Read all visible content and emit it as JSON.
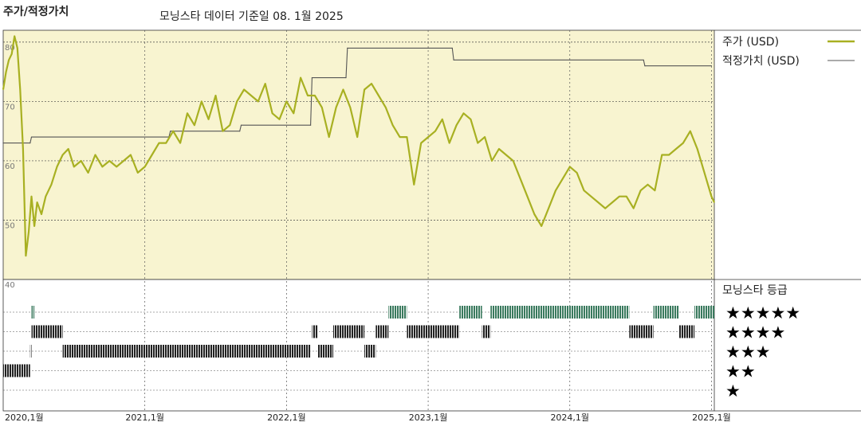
{
  "chart_data": {
    "type": "line",
    "title": "주가/적정가치",
    "subtitle": "모닝스타 데이터 기준일 08. 1월 2025",
    "xlabel": "",
    "ylabel": "",
    "ylim": [
      40,
      82
    ],
    "y_ticks": [
      "80",
      "70",
      "60",
      "50",
      "40"
    ],
    "x_ticks": [
      "2020,1월",
      "2021,1월",
      "2022,1월",
      "2023,1월",
      "2024,1월",
      "2025,1월"
    ],
    "grid": true,
    "legend_position": "top-right",
    "colors": {
      "price": "#a8b022",
      "fair_value": "#555555",
      "plot_bg": "#f8f4d0",
      "rating_bar_top": "#3a7a5e",
      "rating_bar": "#222222"
    },
    "series": [
      {
        "name": "주가 (USD)",
        "key": "price",
        "x": [
          2020.0,
          2020.02,
          2020.04,
          2020.06,
          2020.08,
          2020.1,
          2020.12,
          2020.14,
          2020.16,
          2020.18,
          2020.2,
          2020.22,
          2020.24,
          2020.27,
          2020.3,
          2020.34,
          2020.38,
          2020.42,
          2020.46,
          2020.5,
          2020.55,
          2020.6,
          2020.65,
          2020.7,
          2020.75,
          2020.8,
          2020.85,
          2020.9,
          2020.95,
          2021.0,
          2021.05,
          2021.1,
          2021.15,
          2021.2,
          2021.25,
          2021.3,
          2021.35,
          2021.4,
          2021.45,
          2021.5,
          2021.55,
          2021.6,
          2021.65,
          2021.7,
          2021.75,
          2021.8,
          2021.85,
          2021.9,
          2021.95,
          2022.0,
          2022.05,
          2022.1,
          2022.15,
          2022.2,
          2022.25,
          2022.3,
          2022.35,
          2022.4,
          2022.45,
          2022.5,
          2022.55,
          2022.6,
          2022.65,
          2022.7,
          2022.75,
          2022.8,
          2022.85,
          2022.9,
          2022.95,
          2023.0,
          2023.05,
          2023.1,
          2023.15,
          2023.2,
          2023.25,
          2023.3,
          2023.35,
          2023.4,
          2023.45,
          2023.5,
          2023.55,
          2023.6,
          2023.65,
          2023.7,
          2023.75,
          2023.8,
          2023.85,
          2023.9,
          2023.95,
          2024.0,
          2024.05,
          2024.1,
          2024.15,
          2024.2,
          2024.25,
          2024.3,
          2024.35,
          2024.4,
          2024.45,
          2024.5,
          2024.55,
          2024.6,
          2024.65,
          2024.7,
          2024.75,
          2024.8,
          2024.85,
          2024.9,
          2024.95,
          2025.0,
          2025.02
        ],
        "values": [
          72,
          75,
          77,
          78,
          81,
          79,
          72,
          62,
          44,
          48,
          54,
          49,
          53,
          51,
          54,
          56,
          59,
          61,
          62,
          59,
          60,
          58,
          61,
          59,
          60,
          59,
          60,
          61,
          58,
          59,
          61,
          63,
          63,
          65,
          63,
          68,
          66,
          70,
          67,
          71,
          65,
          66,
          70,
          72,
          71,
          70,
          73,
          68,
          67,
          70,
          68,
          74,
          71,
          71,
          69,
          64,
          69,
          72,
          69,
          64,
          72,
          73,
          71,
          69,
          66,
          64,
          64,
          56,
          63,
          64,
          65,
          67,
          63,
          66,
          68,
          67,
          63,
          64,
          60,
          62,
          61,
          60,
          57,
          54,
          51,
          49,
          52,
          55,
          57,
          59,
          58,
          55,
          54,
          53,
          52,
          53,
          54,
          54,
          52,
          55,
          56,
          55,
          61,
          61,
          62,
          63,
          65,
          62,
          58,
          54,
          53
        ],
        "legend_style": "line"
      },
      {
        "name": "적정가치 (USD)",
        "key": "fair_value",
        "x": [
          2020.0,
          2020.19,
          2020.2,
          2021.17,
          2021.18,
          2021.67,
          2021.68,
          2022.17,
          2022.18,
          2022.42,
          2022.43,
          2023.17,
          2023.18,
          2024.52,
          2024.53,
          2025.0
        ],
        "values": [
          63,
          63,
          64,
          64,
          65,
          65,
          66,
          66,
          74,
          74,
          79,
          79,
          77,
          77,
          76,
          76
        ],
        "legend_style": "line"
      }
    ],
    "ratings": {
      "title": "모닝스타 등급",
      "levels": [
        "★★★★★",
        "★★★★",
        "★★★",
        "★★",
        "★"
      ],
      "periods": [
        {
          "stars": 5,
          "from": 2020.2,
          "to": 2020.22
        },
        {
          "stars": 4,
          "from": 2020.2,
          "to": 2020.42
        },
        {
          "stars": 3,
          "from": 2020.19,
          "to": 2020.2
        },
        {
          "stars": 2,
          "from": 2020.0,
          "to": 2020.19
        },
        {
          "stars": 3,
          "from": 2020.42,
          "to": 2022.17
        },
        {
          "stars": 4,
          "from": 2022.18,
          "to": 2022.22
        },
        {
          "stars": 3,
          "from": 2022.22,
          "to": 2022.33
        },
        {
          "stars": 4,
          "from": 2022.33,
          "to": 2022.55
        },
        {
          "stars": 3,
          "from": 2022.55,
          "to": 2022.63
        },
        {
          "stars": 4,
          "from": 2022.63,
          "to": 2022.72
        },
        {
          "stars": 5,
          "from": 2022.72,
          "to": 2022.85
        },
        {
          "stars": 4,
          "from": 2022.85,
          "to": 2023.22
        },
        {
          "stars": 5,
          "from": 2023.22,
          "to": 2023.38
        },
        {
          "stars": 4,
          "from": 2023.38,
          "to": 2023.44
        },
        {
          "stars": 5,
          "from": 2023.44,
          "to": 2024.42
        },
        {
          "stars": 4,
          "from": 2024.42,
          "to": 2024.59
        },
        {
          "stars": 5,
          "from": 2024.59,
          "to": 2024.77
        },
        {
          "stars": 4,
          "from": 2024.77,
          "to": 2024.88
        },
        {
          "stars": 5,
          "from": 2024.88,
          "to": 2025.02
        }
      ]
    }
  }
}
